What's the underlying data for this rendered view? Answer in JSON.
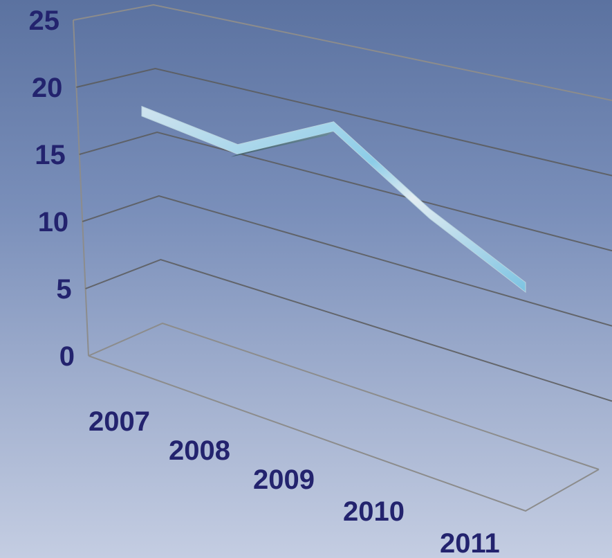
{
  "chart_data": {
    "type": "line",
    "style": "3d-ribbon",
    "categories": [
      "2007",
      "2008",
      "2009",
      "2010",
      "2011"
    ],
    "series": [
      {
        "values": [
          17,
          17,
          22,
          18,
          15
        ]
      }
    ],
    "yticks": [
      "0",
      "5",
      "10",
      "15",
      "20",
      "25"
    ],
    "ylim": [
      0,
      25
    ],
    "grid": true,
    "legend": "none",
    "title": "",
    "xlabel": "",
    "ylabel": ""
  },
  "colors": {
    "label": "#23236e",
    "ribbon_top": "#d6e6f0",
    "ribbon_side": "#5b7f8c",
    "ribbon_highlight": "#8ccde8",
    "grid": "#5a5a5a"
  }
}
